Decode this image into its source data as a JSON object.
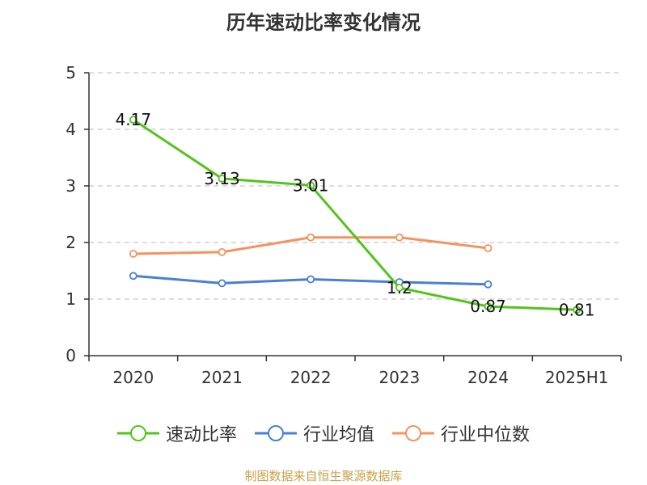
{
  "chart_data": {
    "type": "line",
    "title": "历年速动比率变化情况",
    "xlabel": "",
    "ylabel": "",
    "categories": [
      "2020",
      "2021",
      "2022",
      "2023",
      "2024",
      "2025H1"
    ],
    "ylim": [
      0,
      5
    ],
    "yticks": [
      "0",
      "1",
      "2",
      "3",
      "4",
      "5"
    ],
    "grid": true,
    "legend_position": "bottom",
    "series": [
      {
        "name": "速动比率",
        "color": "#52c41a",
        "values": [
          4.17,
          3.13,
          3.01,
          1.2,
          0.87,
          0.81
        ],
        "labels": [
          "4.17",
          "3.13",
          "3.01",
          "1.2",
          "0.87",
          "0.81"
        ]
      },
      {
        "name": "行业均值",
        "color": "#4a7fd6",
        "values": [
          1.41,
          1.28,
          1.35,
          1.3,
          1.26,
          null
        ]
      },
      {
        "name": "行业中位数",
        "color": "#f4935e",
        "values": [
          1.8,
          1.83,
          2.09,
          2.09,
          1.9,
          null
        ]
      }
    ]
  },
  "footer": {
    "source": "制图数据来自恒生聚源数据库"
  }
}
